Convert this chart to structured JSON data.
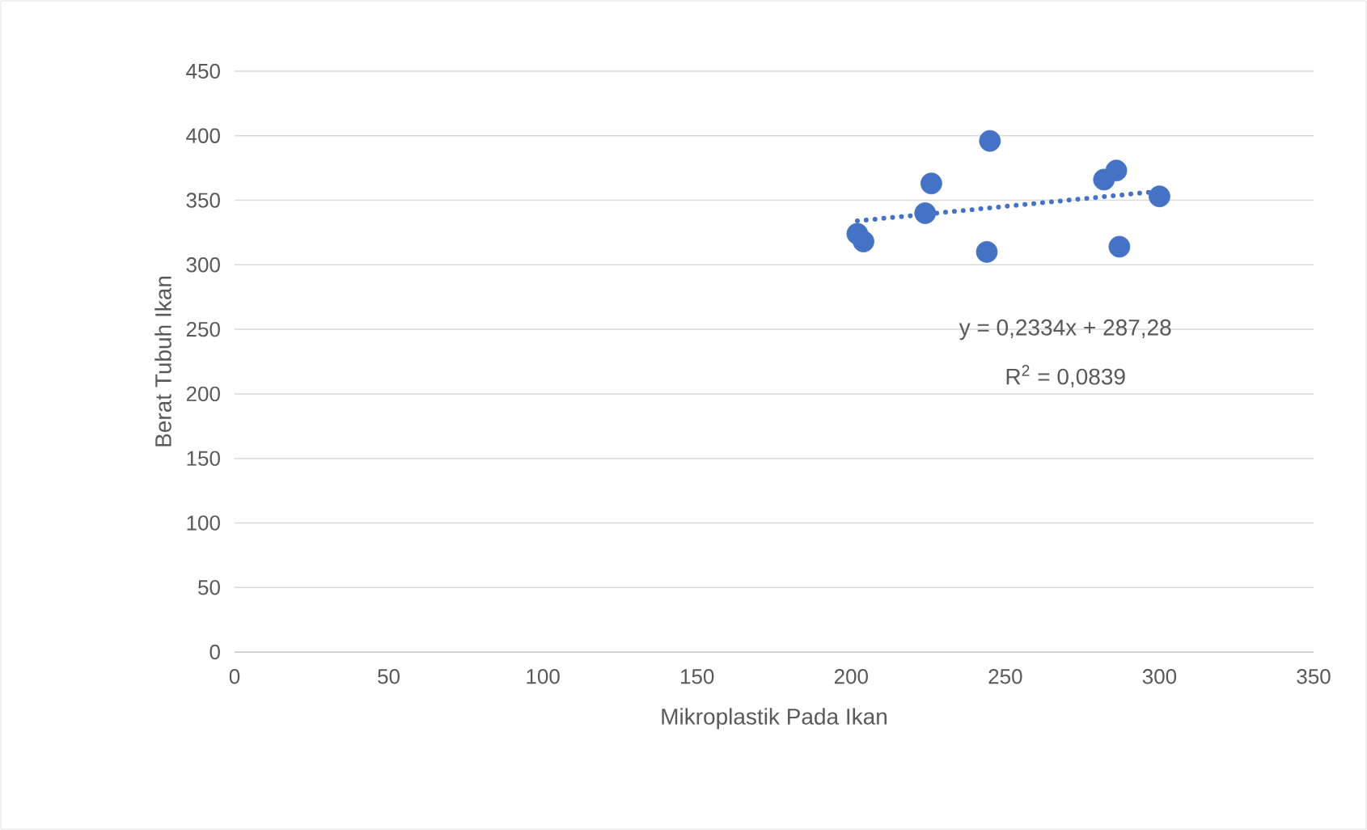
{
  "chart_data": {
    "type": "scatter",
    "xlabel": "Mikroplastik Pada Ikan",
    "ylabel": "Berat Tubuh Ikan",
    "x": [
      202,
      204,
      224,
      226,
      245,
      244,
      282,
      286,
      287,
      300
    ],
    "series": [
      {
        "color": "#4472c4",
        "marker": "circle",
        "values": [
          324,
          318,
          340,
          363,
          396,
          310,
          366,
          373,
          314,
          353
        ]
      },
      {
        "type": "line",
        "color": "#4472c4",
        "line_style": "dotted",
        "marker": "none",
        "x": [
          202,
          300
        ],
        "values": [
          334,
          357
        ]
      }
    ],
    "xlim": [
      0,
      350
    ],
    "xticks": [
      0,
      50,
      100,
      150,
      200,
      250,
      300,
      350
    ],
    "ylim": [
      0,
      450
    ],
    "yticks": [
      0,
      50,
      100,
      150,
      200,
      250,
      300,
      350,
      400,
      450
    ],
    "grid": "y",
    "annotations": [
      "y = 0,2334x + 287,28",
      "R$^{2}$ = 0,0839"
    ]
  }
}
